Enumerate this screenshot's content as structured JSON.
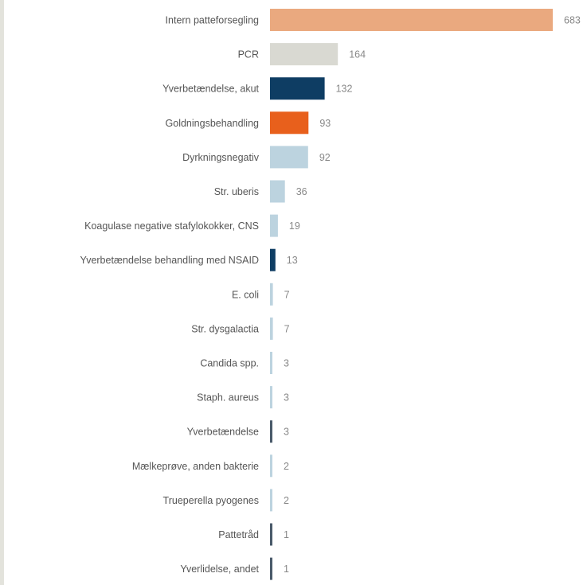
{
  "chart_data": {
    "type": "bar",
    "orientation": "horizontal",
    "categories": [
      "Intern patteforsegling",
      "PCR",
      "Yverbetændelse, akut",
      "Goldningsbehandling",
      "Dyrkningsnegativ",
      "Str. uberis",
      "Koagulase negative stafylokokker, CNS",
      "Yverbetændelse behandling med NSAID",
      "E. coli",
      "Str. dysgalactia",
      "Candida spp.",
      "Staph. aureus",
      "Yverbetændelse",
      "Mælkeprøve, anden bakterie",
      "Trueperella pyogenes",
      "Pattetråd",
      "Yverlidelse, andet"
    ],
    "values": [
      683,
      164,
      132,
      93,
      92,
      36,
      19,
      13,
      7,
      7,
      3,
      3,
      3,
      2,
      2,
      1,
      1
    ],
    "colors": [
      "#eaa97f",
      "#d9d9d2",
      "#0e3d63",
      "#e8601c",
      "#bcd3df",
      "#bcd3df",
      "#bcd3df",
      "#0e3d63",
      "#bcd3df",
      "#bcd3df",
      "#bcd3df",
      "#bcd3df",
      "#4a5a6a",
      "#bcd3df",
      "#bcd3df",
      "#4a5a6a",
      "#4a5a6a"
    ],
    "xlim": [
      0,
      683
    ],
    "grid": false,
    "legend": "none"
  }
}
